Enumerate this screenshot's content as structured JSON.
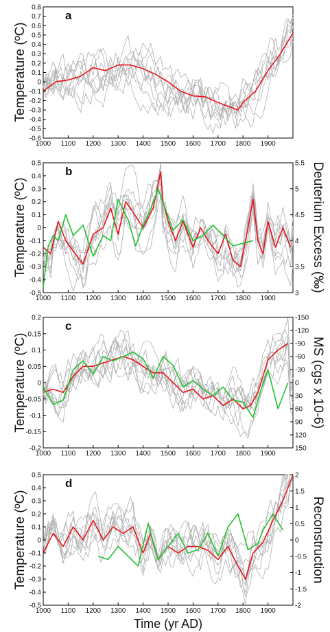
{
  "figure": {
    "x_axis_title": "Time (yr AD)"
  },
  "chart_data": [
    {
      "panel": "a",
      "type": "line",
      "ylabel": "Temperature (ºC)",
      "xlim": [
        1000,
        2000
      ],
      "ylim": [
        -0.6,
        0.8
      ],
      "yticks": [
        "0.8",
        "0.7",
        "0.6",
        "0.5",
        "0.4",
        "0.3",
        "0.2",
        "0.1",
        "0",
        "-0.1",
        "-0.2",
        "-0.3",
        "-0.4",
        "-0.5",
        "-0.6"
      ],
      "xticks": [
        "1000",
        "1100",
        "1200",
        "1300",
        "1400",
        "1500",
        "1600",
        "1700",
        "1800",
        "1900"
      ],
      "series": [
        {
          "color": "#e8141b",
          "x": [
            1000,
            1050,
            1100,
            1150,
            1200,
            1250,
            1300,
            1350,
            1400,
            1450,
            1500,
            1550,
            1600,
            1650,
            1700,
            1750,
            1780,
            1800,
            1850,
            1900,
            1950,
            2000
          ],
          "y": [
            -0.1,
            0.0,
            0.02,
            0.06,
            0.15,
            0.12,
            0.18,
            0.18,
            0.14,
            0.08,
            0.0,
            -0.1,
            -0.15,
            -0.16,
            -0.22,
            -0.27,
            -0.3,
            -0.22,
            -0.1,
            0.12,
            0.3,
            0.52
          ]
        }
      ]
    },
    {
      "panel": "b",
      "type": "line",
      "ylabel": "Temperature (ºC)",
      "y2label": "Deuterium Excess (‰)",
      "xlim": [
        1000,
        2000
      ],
      "ylim": [
        -0.5,
        0.5
      ],
      "y2lim": [
        3,
        5.5
      ],
      "yticks": [
        "0.5",
        "0.4",
        "0.3",
        "0.2",
        "0.1",
        "0",
        "-0.1",
        "-0.2",
        "-0.3",
        "-0.4",
        "-0.5"
      ],
      "y2ticks": [
        "5.5",
        "5",
        "4.5",
        "4",
        "3.5",
        "3"
      ],
      "xticks": [
        "1000",
        "1100",
        "1200",
        "1300",
        "1400",
        "1500",
        "1600",
        "1700",
        "1800",
        "1900"
      ],
      "series": [
        {
          "color": "#e8141b",
          "x": [
            1000,
            1030,
            1060,
            1090,
            1120,
            1160,
            1200,
            1240,
            1270,
            1300,
            1330,
            1360,
            1400,
            1440,
            1470,
            1480,
            1500,
            1530,
            1560,
            1600,
            1630,
            1660,
            1700,
            1730,
            1760,
            1790,
            1820,
            1840,
            1860,
            1880,
            1900,
            1930,
            1960,
            1990
          ],
          "y": [
            -0.15,
            -0.2,
            0.05,
            -0.1,
            -0.18,
            -0.28,
            -0.05,
            0.0,
            0.15,
            -0.05,
            0.2,
            0.12,
            0.0,
            0.15,
            0.43,
            0.2,
            0.05,
            -0.1,
            0.05,
            -0.15,
            0.0,
            -0.1,
            -0.2,
            -0.05,
            -0.25,
            -0.3,
            0.0,
            0.22,
            -0.1,
            -0.2,
            0.05,
            -0.15,
            0.0,
            -0.15
          ]
        },
        {
          "color": "#20c030",
          "axis": "y2",
          "x": [
            1000,
            1010,
            1020,
            1040,
            1060,
            1090,
            1120,
            1160,
            1200,
            1240,
            1270,
            1300,
            1340,
            1370,
            1400,
            1430,
            1460,
            1490,
            1520,
            1560,
            1600,
            1640,
            1680,
            1720,
            1760,
            1800,
            1840
          ],
          "y": [
            3.1,
            3.5,
            3.9,
            4.1,
            4.0,
            4.5,
            4.1,
            4.3,
            3.7,
            4.1,
            4.0,
            4.8,
            4.4,
            3.9,
            4.3,
            4.6,
            5.0,
            4.6,
            4.2,
            4.4,
            4.0,
            4.1,
            4.3,
            4.1,
            3.9,
            3.95,
            4.0
          ]
        }
      ]
    },
    {
      "panel": "c",
      "type": "line",
      "ylabel": "Temperature (ºC)",
      "y2label": "MS (cgs x 10-6)",
      "xlim": [
        1000,
        2000
      ],
      "ylim": [
        -0.2,
        0.2
      ],
      "y2lim": [
        150,
        -150
      ],
      "yticks": [
        "0.2",
        "0.15",
        "0.1",
        "0.05",
        "0",
        "-0.05",
        "-0.1",
        "-0.15",
        "-0.2"
      ],
      "y2ticks": [
        "-150",
        "-120",
        "-90",
        "-60",
        "-30",
        "0",
        "30",
        "60",
        "90",
        "120",
        "150"
      ],
      "xticks": [
        "1000",
        "1100",
        "1200",
        "1300",
        "1400",
        "1500",
        "1600",
        "1700",
        "1800",
        "1900"
      ],
      "series": [
        {
          "color": "#e8141b",
          "x": [
            1000,
            1040,
            1080,
            1120,
            1160,
            1200,
            1240,
            1280,
            1320,
            1360,
            1400,
            1440,
            1480,
            1520,
            1560,
            1600,
            1640,
            1680,
            1720,
            1760,
            1800,
            1830,
            1860,
            1900,
            1940,
            1980
          ],
          "y": [
            -0.03,
            -0.02,
            -0.03,
            0.02,
            0.05,
            0.05,
            0.06,
            0.07,
            0.08,
            0.07,
            0.05,
            0.03,
            0.03,
            0.0,
            -0.03,
            -0.02,
            -0.05,
            -0.04,
            -0.07,
            -0.05,
            -0.08,
            -0.07,
            -0.03,
            0.07,
            0.1,
            0.12
          ]
        },
        {
          "color": "#20c030",
          "axis": "y2",
          "x": [
            1000,
            1040,
            1080,
            1120,
            1160,
            1200,
            1240,
            1280,
            1320,
            1360,
            1400,
            1440,
            1480,
            1520,
            1560,
            1600,
            1640,
            1680,
            1720,
            1760,
            1800,
            1840,
            1870,
            1900,
            1940,
            1980
          ],
          "y": [
            10,
            50,
            40,
            -30,
            -50,
            -20,
            -60,
            -50,
            -60,
            -70,
            -55,
            -10,
            -60,
            -40,
            10,
            -5,
            15,
            30,
            10,
            40,
            45,
            80,
            20,
            -30,
            60,
            0
          ]
        }
      ]
    },
    {
      "panel": "d",
      "type": "line",
      "ylabel": "Temperature (ºC)",
      "y2label": "Reconstruction",
      "xlim": [
        1000,
        2000
      ],
      "ylim": [
        -0.5,
        0.5
      ],
      "y2lim": [
        -2,
        2
      ],
      "yticks": [
        "0.5",
        "0.4",
        "0.3",
        "0.2",
        "0.1",
        "0",
        "-0.1",
        "-0.2",
        "-0.3",
        "-0.4",
        "-0.5"
      ],
      "y2ticks": [
        "2",
        "1.5",
        "1",
        "0.5",
        "0",
        "-0.5",
        "-1",
        "-1.5",
        "-2"
      ],
      "xticks": [
        "1000",
        "1100",
        "1200",
        "1300",
        "1400",
        "1500",
        "1600",
        "1700",
        "1800",
        "1900"
      ],
      "series": [
        {
          "color": "#e8141b",
          "x": [
            1000,
            1040,
            1080,
            1120,
            1160,
            1200,
            1240,
            1280,
            1320,
            1360,
            1400,
            1430,
            1460,
            1500,
            1540,
            1580,
            1620,
            1660,
            1700,
            1740,
            1780,
            1810,
            1840,
            1880,
            1920,
            1960,
            2000
          ],
          "y": [
            -0.1,
            0.05,
            -0.05,
            0.1,
            0.0,
            0.15,
            0.0,
            0.1,
            0.05,
            0.1,
            -0.1,
            0.05,
            -0.15,
            -0.05,
            -0.1,
            -0.05,
            -0.05,
            -0.08,
            -0.15,
            -0.05,
            -0.2,
            -0.3,
            -0.1,
            -0.02,
            0.15,
            0.3,
            0.5
          ]
        },
        {
          "color": "#20c030",
          "axis": "y2",
          "x": [
            1220,
            1260,
            1300,
            1340,
            1380,
            1420,
            1460,
            1500,
            1540,
            1580,
            1620,
            1660,
            1700,
            1740,
            1780,
            1820,
            1860,
            1880,
            1920,
            1960
          ],
          "y": [
            -0.5,
            -0.6,
            -0.2,
            -0.5,
            -0.8,
            0.5,
            -0.6,
            -0.2,
            0.2,
            -0.4,
            -0.3,
            0.2,
            -0.5,
            0.4,
            0.8,
            -0.3,
            -0.1,
            0.3,
            0.8,
            0.3
          ]
        }
      ]
    }
  ]
}
